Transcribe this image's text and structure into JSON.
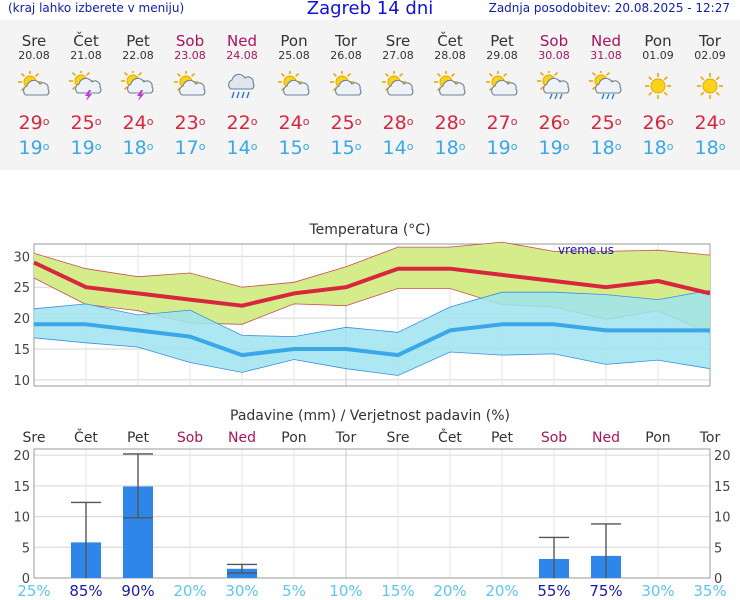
{
  "header": {
    "left_link": "(kraj lahko izberete v meniju)",
    "title": "Zagreb 14 dni",
    "updated": "Zadnja posodobitev: 20.08.2025 - 12:27"
  },
  "days": [
    {
      "name": "Sre",
      "date": "20.08",
      "weekend": false,
      "icon": "sun-cloud-icon",
      "max": "29",
      "min": "19"
    },
    {
      "name": "Čet",
      "date": "21.08",
      "weekend": false,
      "icon": "sun-cloud-thunder-icon",
      "max": "25",
      "min": "19"
    },
    {
      "name": "Pet",
      "date": "22.08",
      "weekend": false,
      "icon": "sun-cloud-thunder-icon",
      "max": "24",
      "min": "18"
    },
    {
      "name": "Sob",
      "date": "23.08",
      "weekend": true,
      "icon": "sun-cloud-icon",
      "max": "23",
      "min": "17"
    },
    {
      "name": "Ned",
      "date": "24.08",
      "weekend": true,
      "icon": "rain-cloud-icon",
      "max": "22",
      "min": "14"
    },
    {
      "name": "Pon",
      "date": "25.08",
      "weekend": false,
      "icon": "sun-cloud-icon",
      "max": "24",
      "min": "15"
    },
    {
      "name": "Tor",
      "date": "26.08",
      "weekend": false,
      "icon": "sun-cloud-icon",
      "max": "25",
      "min": "15"
    },
    {
      "name": "Sre",
      "date": "27.08",
      "weekend": false,
      "icon": "sun-cloud-icon",
      "max": "28",
      "min": "14"
    },
    {
      "name": "Čet",
      "date": "28.08",
      "weekend": false,
      "icon": "sun-cloud-icon",
      "max": "28",
      "min": "18"
    },
    {
      "name": "Pet",
      "date": "29.08",
      "weekend": false,
      "icon": "sun-cloud-icon",
      "max": "27",
      "min": "19"
    },
    {
      "name": "Sob",
      "date": "30.08",
      "weekend": true,
      "icon": "sun-rain-icon",
      "max": "26",
      "min": "19"
    },
    {
      "name": "Ned",
      "date": "31.08",
      "weekend": true,
      "icon": "sun-rain-icon",
      "max": "25",
      "min": "18"
    },
    {
      "name": "Pon",
      "date": "01.09",
      "weekend": false,
      "icon": "sun-icon",
      "max": "26",
      "min": "18"
    },
    {
      "name": "Tor",
      "date": "02.09",
      "weekend": false,
      "icon": "sun-icon",
      "max": "24",
      "min": "18"
    }
  ],
  "degree_symbol": "o",
  "colors": {
    "max": "#d7263d",
    "min": "#3aa7e6",
    "weekend": "#a8145c",
    "max_band": "#d4ec8a",
    "min_band": "#9fe4f0",
    "overlap": "#88d77e",
    "bar": "#2e86e8"
  },
  "chart_data": [
    {
      "type": "line",
      "title": "Temperatura (°C)",
      "watermark": "vreme.us",
      "categories": [
        "Sre",
        "Čet",
        "Pet",
        "Sob",
        "Ned",
        "Pon",
        "Tor",
        "Sre",
        "Čet",
        "Pet",
        "Sob",
        "Ned",
        "Pon",
        "Tor"
      ],
      "yticks": [
        10,
        15,
        20,
        25,
        30
      ],
      "ylim": [
        9,
        32
      ],
      "grid": true,
      "series": [
        {
          "values": [
            29,
            25,
            24,
            23,
            22,
            24,
            25,
            28,
            28,
            27,
            26,
            25,
            26,
            24
          ]
        },
        {
          "values": [
            19,
            19,
            18,
            17,
            14,
            15,
            15,
            14,
            18,
            19,
            19,
            18,
            18,
            18
          ]
        }
      ],
      "bands": [
        {
          "upper": [
            30.5,
            28,
            26.7,
            27.3,
            25,
            25.8,
            28.3,
            31.5,
            31.5,
            32.3,
            30.8,
            30.8,
            31,
            30.2
          ],
          "lower": [
            26.5,
            22.2,
            21.2,
            19.2,
            19,
            22.3,
            22,
            24.8,
            24.8,
            22.2,
            21.8,
            19.8,
            21.2,
            17.5
          ]
        },
        {
          "upper": [
            21.5,
            22.3,
            20.5,
            21.3,
            17.2,
            17,
            18.5,
            17.7,
            21.8,
            24.2,
            24.2,
            23.8,
            23,
            24.5
          ],
          "lower": [
            16.8,
            16,
            15.3,
            12.8,
            11.2,
            13.3,
            11.8,
            10.7,
            14.5,
            14,
            14.2,
            12.5,
            13.2,
            11.8
          ]
        }
      ]
    },
    {
      "type": "bar",
      "title": "Padavine (mm) / Verjetnost padavin (%)",
      "categories": [
        "Sre",
        "Čet",
        "Pet",
        "Sob",
        "Ned",
        "Pon",
        "Tor",
        "Sre",
        "Čet",
        "Pet",
        "Sob",
        "Ned",
        "Pon",
        "Tor"
      ],
      "weekend": [
        false,
        false,
        false,
        true,
        true,
        false,
        false,
        false,
        false,
        false,
        true,
        true,
        false,
        false
      ],
      "yticks": [
        0,
        5,
        10,
        15,
        20
      ],
      "ylim": [
        0,
        21
      ],
      "grid": true,
      "values": [
        0,
        5.8,
        14.9,
        0,
        1.5,
        0,
        0,
        0,
        0,
        0,
        3.1,
        3.6,
        0,
        0
      ],
      "error_low": [
        0,
        0,
        9.8,
        0,
        0.8,
        0,
        0,
        0,
        0,
        0,
        0,
        0,
        0,
        0
      ],
      "error_high": [
        0,
        12.3,
        20.2,
        0,
        2.2,
        0,
        0,
        0,
        0,
        0,
        6.6,
        8.8,
        0,
        0
      ],
      "probability": [
        "25%",
        "85%",
        "90%",
        "20%",
        "30%",
        "5%",
        "10%",
        "15%",
        "20%",
        "20%",
        "55%",
        "75%",
        "30%",
        "35%"
      ]
    }
  ]
}
